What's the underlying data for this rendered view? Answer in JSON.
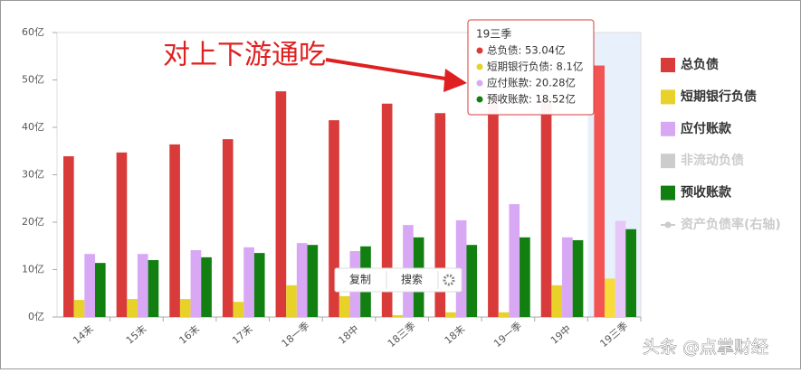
{
  "chart_data": {
    "type": "bar",
    "categories": [
      "14末",
      "15末",
      "16末",
      "17末",
      "18一季",
      "18中",
      "18三季",
      "18末",
      "19一季",
      "19中",
      "19三季"
    ],
    "series": [
      {
        "name": "总负债",
        "color": "#d93b3b",
        "values": [
          33.9,
          34.7,
          36.4,
          37.5,
          47.6,
          41.5,
          45,
          43,
          47,
          46,
          53.04
        ]
      },
      {
        "name": "短期银行负债",
        "color": "#e8d22a",
        "values": [
          3.6,
          3.8,
          3.8,
          3.2,
          6.7,
          4.4,
          0.4,
          1,
          1,
          6.7,
          8.1
        ]
      },
      {
        "name": "应付账款",
        "color": "#d8a8f5",
        "values": [
          13.3,
          13.3,
          14.1,
          14.7,
          15.6,
          13.9,
          19.4,
          20.4,
          23.8,
          16.8,
          20.28
        ]
      },
      {
        "name": "非流动负债",
        "color": "#cccccc",
        "hidden": true
      },
      {
        "name": "预收账款",
        "color": "#118011",
        "values": [
          11.4,
          12,
          12.6,
          13.5,
          15.2,
          14.9,
          16.8,
          15.2,
          16.8,
          16.2,
          18.52
        ]
      },
      {
        "name": "资产负债率(右轴)",
        "color": "#cccccc",
        "hidden": true,
        "legend": "line"
      }
    ],
    "ylim": [
      0,
      60
    ],
    "yticks": [
      {
        "value": 0,
        "label": "0亿"
      },
      {
        "value": 10,
        "label": "10亿"
      },
      {
        "value": 20,
        "label": "20亿"
      },
      {
        "value": 30,
        "label": "30亿"
      },
      {
        "value": 40,
        "label": "40亿"
      },
      {
        "value": 50,
        "label": "50亿"
      },
      {
        "value": 60,
        "label": "60亿"
      }
    ],
    "highlight": 10,
    "annotation": "对上下游通吃",
    "tooltip": {
      "title": "19三季",
      "lines": [
        "总负债: 53.04亿",
        "短期银行负债: 8.1亿",
        "应付账款: 20.28亿",
        "预收账款: 18.52亿"
      ],
      "colors": [
        "#d93b3b",
        "#e8d22a",
        "#d8a8f5",
        "#118011"
      ]
    },
    "menu": [
      "复制",
      "搜索"
    ],
    "watermark": "头条 @点掌财经"
  }
}
